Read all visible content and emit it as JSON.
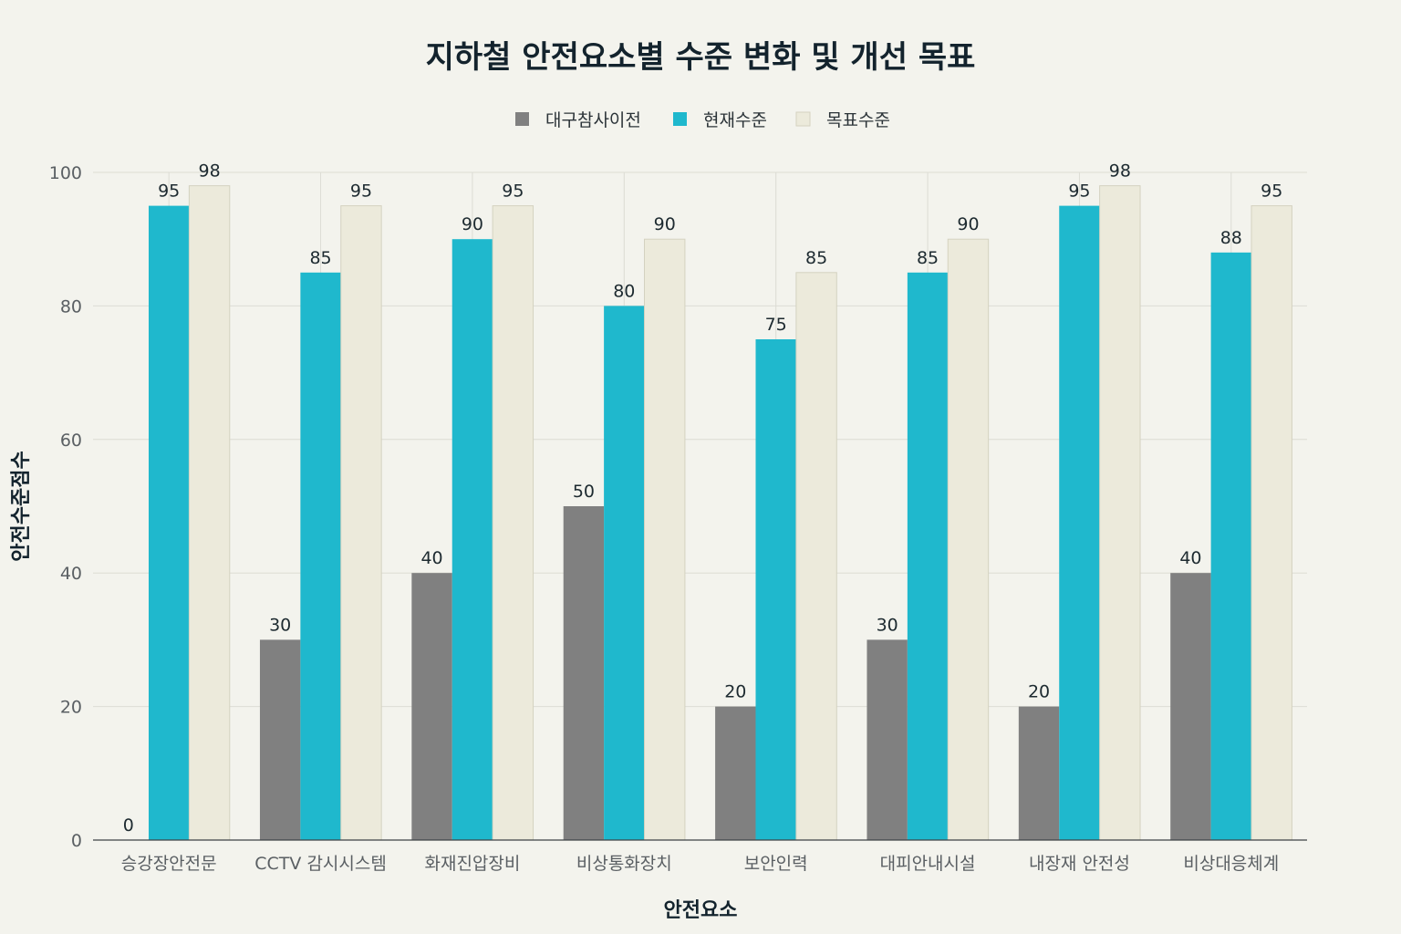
{
  "colors": {
    "background": "#f3f3ed",
    "before": "#808080",
    "current": "#1fb8cd",
    "target": "#eceadb",
    "target_stroke": "#d4d2c0"
  },
  "chart_data": {
    "type": "bar",
    "title": "지하철 안전요소별 수준 변화 및 개선 목표",
    "xlabel": "안전요소",
    "ylabel": "안전수준점수",
    "ylim": [
      0,
      100
    ],
    "yticks": [
      0,
      20,
      40,
      60,
      80,
      100
    ],
    "grid": true,
    "legend_position": "top-center",
    "categories": [
      "승강장안전문",
      "CCTV 감시시스템",
      "화재진압장비",
      "비상통화장치",
      "보안인력",
      "대피안내시설",
      "내장재 안전성",
      "비상대응체계"
    ],
    "series": [
      {
        "name": "대구참사이전",
        "color": "#808080",
        "values": [
          0,
          30,
          40,
          50,
          20,
          30,
          20,
          40
        ]
      },
      {
        "name": "현재수준",
        "color": "#1fb8cd",
        "values": [
          95,
          85,
          90,
          80,
          75,
          85,
          95,
          88
        ]
      },
      {
        "name": "목표수준",
        "color": "#eceadb",
        "values": [
          98,
          95,
          95,
          90,
          85,
          90,
          98,
          95
        ]
      }
    ]
  }
}
